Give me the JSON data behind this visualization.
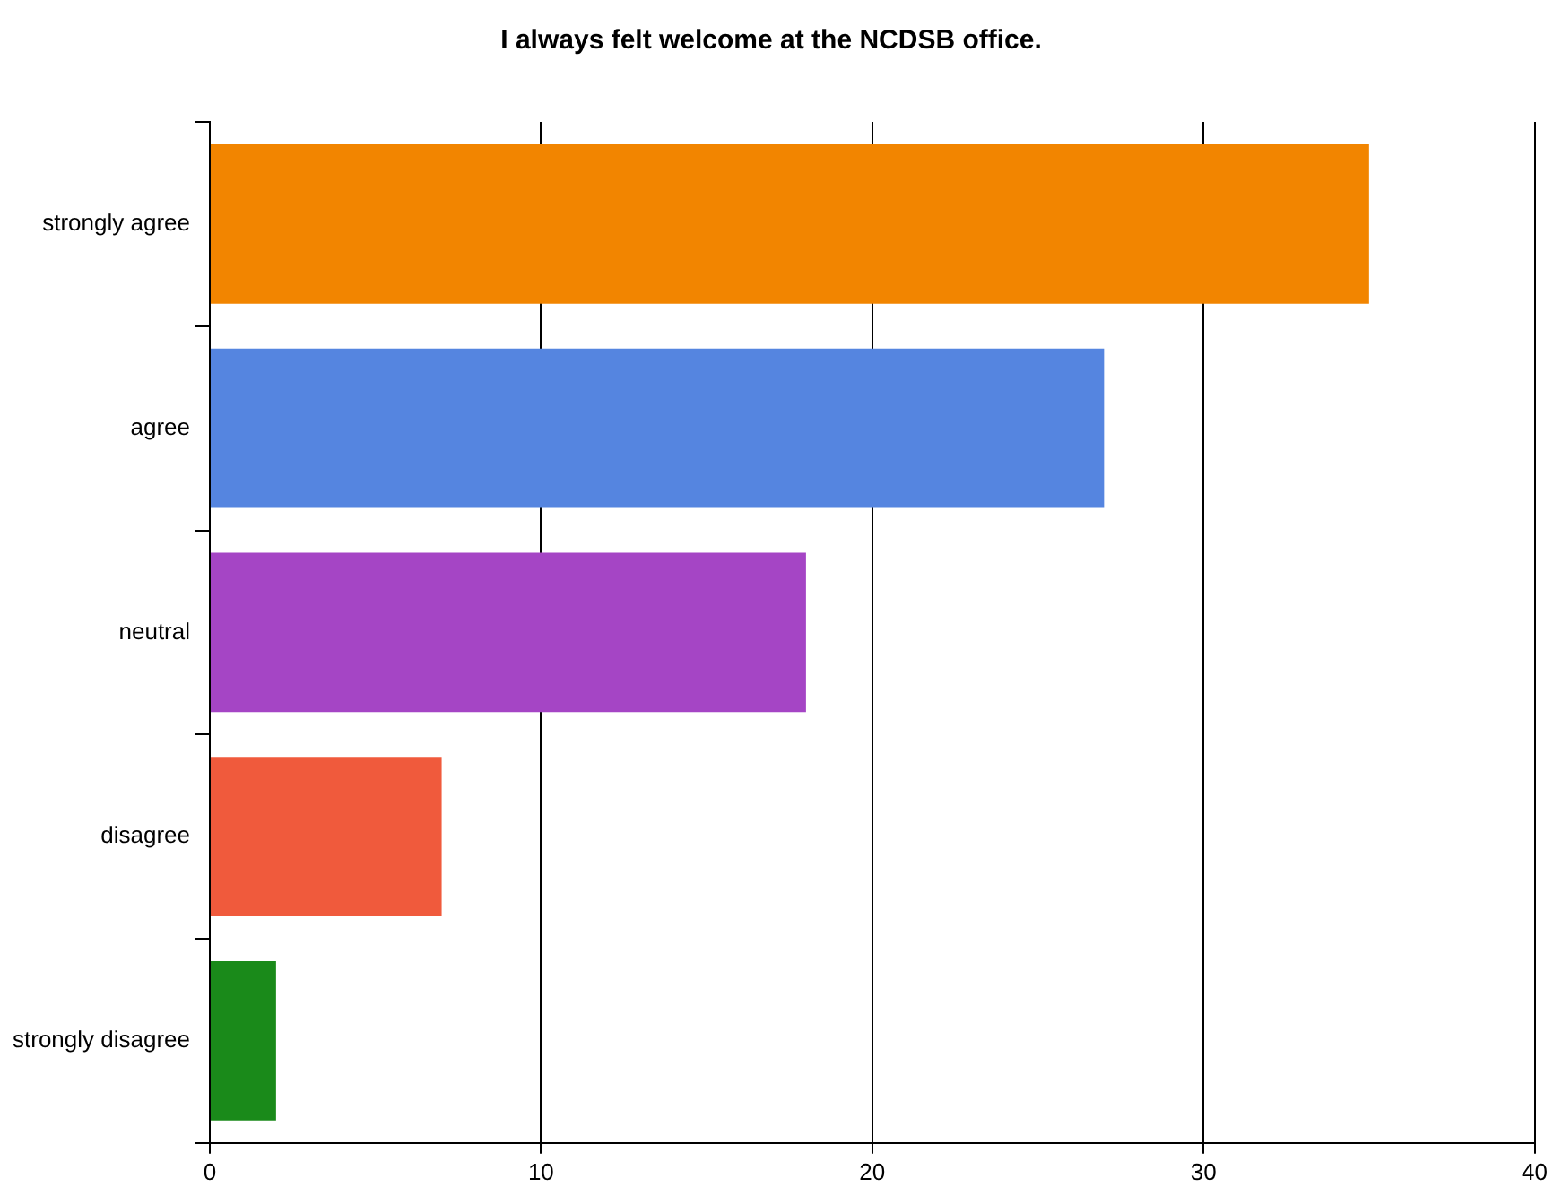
{
  "chart_data": {
    "type": "bar",
    "orientation": "horizontal",
    "title": "I always felt welcome at the NCDSB office.",
    "categories": [
      "strongly agree",
      "agree",
      "neutral",
      "disagree",
      "strongly disagree"
    ],
    "values": [
      35,
      27,
      18,
      7,
      2
    ],
    "colors": [
      "#f28500",
      "#5585e0",
      "#a545c5",
      "#f05a3c",
      "#1a8a1a"
    ],
    "xlim": [
      0,
      40
    ],
    "xticks": [
      0,
      10,
      20,
      30,
      40
    ],
    "grid": "x",
    "legend": false
  }
}
